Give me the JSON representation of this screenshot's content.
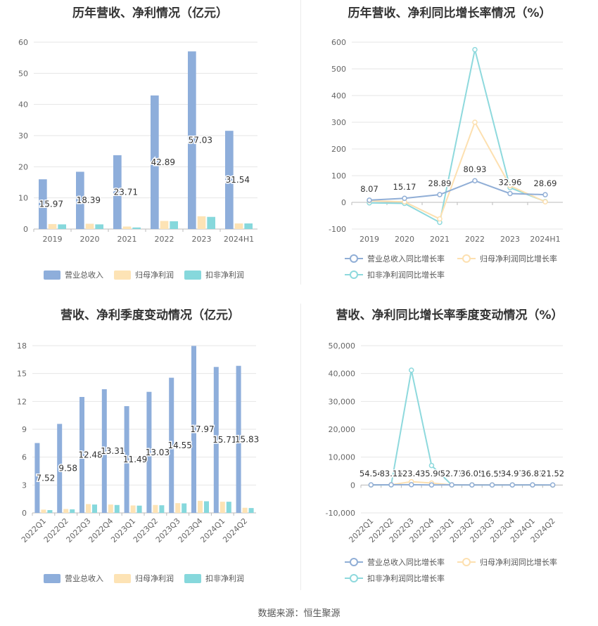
{
  "footer": {
    "source": "数据来源：恒生聚源"
  },
  "colors": {
    "revenue": "#8eaedb",
    "net_profit": "#fde3b5",
    "deducted_profit": "#86d8dc",
    "revenue_line": "#90aed6",
    "net_line": "#fde0b0",
    "deducted_line": "#8ed9dd"
  },
  "chart_data": [
    {
      "id": "annual_amount",
      "type": "bar",
      "title": "历年营收、净利情况（亿元）",
      "categories": [
        "2019",
        "2020",
        "2021",
        "2022",
        "2023",
        "2024H1"
      ],
      "ylim": [
        0,
        60
      ],
      "yticks": [
        0,
        10,
        20,
        30,
        40,
        50,
        60
      ],
      "series": [
        {
          "name": "营业总收入",
          "values": [
            15.97,
            18.39,
            23.71,
            42.89,
            57.03,
            31.54
          ],
          "data_labels": [
            "15.97",
            "18.39",
            "23.71",
            "42.89",
            "57.03",
            "31.54"
          ]
        },
        {
          "name": "归母净利润",
          "values": [
            1.6,
            1.7,
            0.8,
            2.6,
            4.1,
            1.8
          ]
        },
        {
          "name": "扣非净利润",
          "values": [
            1.5,
            1.5,
            0.5,
            2.5,
            3.9,
            1.8
          ]
        }
      ],
      "legend": "bottom"
    },
    {
      "id": "annual_growth",
      "type": "line",
      "title": "历年营收、净利同比增长率情况（%）",
      "categories": [
        "2019",
        "2020",
        "2021",
        "2022",
        "2023",
        "2024H1"
      ],
      "ylim": [
        -100,
        600
      ],
      "yticks": [
        -100,
        0,
        100,
        200,
        300,
        400,
        500,
        600
      ],
      "series": [
        {
          "name": "营业总收入同比增长率",
          "values": [
            8.07,
            15.17,
            28.89,
            80.93,
            32.96,
            28.69
          ],
          "data_labels": [
            "8.07",
            "15.17",
            "28.89",
            "80.93",
            "32.96",
            "28.69"
          ]
        },
        {
          "name": "归母净利润同比增长率",
          "values": [
            6,
            2,
            -62,
            300,
            62,
            2
          ]
        },
        {
          "name": "扣非净利润同比增长率",
          "values": [
            -2,
            -4,
            -75,
            572,
            55,
            3
          ]
        }
      ],
      "legend": "bottom"
    },
    {
      "id": "quarterly_amount",
      "type": "bar",
      "title": "营收、净利季度变动情况（亿元）",
      "categories": [
        "2022Q1",
        "2022Q2",
        "2022Q3",
        "2022Q4",
        "2023Q1",
        "2023Q2",
        "2023Q3",
        "2023Q4",
        "2024Q1",
        "2024Q2"
      ],
      "ylim": [
        0,
        18
      ],
      "yticks": [
        0,
        3,
        6,
        9,
        12,
        15,
        18
      ],
      "series": [
        {
          "name": "营业总收入",
          "values": [
            7.52,
            9.58,
            12.48,
            13.31,
            11.49,
            13.03,
            14.55,
            17.97,
            15.71,
            15.83
          ],
          "data_labels": [
            "7.52",
            "9.58",
            "12.48",
            "13.31",
            "11.49",
            "13.03",
            "14.55",
            "17.97",
            "15.71",
            "15.83"
          ]
        },
        {
          "name": "归母净利润",
          "values": [
            0.35,
            0.42,
            0.95,
            0.9,
            0.8,
            0.85,
            1.05,
            1.3,
            1.2,
            0.55
          ]
        },
        {
          "name": "扣非净利润",
          "values": [
            0.3,
            0.38,
            0.9,
            0.85,
            0.78,
            0.82,
            1.02,
            1.25,
            1.2,
            0.52
          ]
        }
      ],
      "legend": "bottom"
    },
    {
      "id": "quarterly_growth",
      "type": "line",
      "title": "营收、净利同比增长率季度变动情况（%）",
      "categories": [
        "2022Q1",
        "2022Q2",
        "2022Q3",
        "2022Q4",
        "2023Q1",
        "2023Q2",
        "2023Q3",
        "2023Q4",
        "2024Q1",
        "2024Q2"
      ],
      "ylim": [
        -10000,
        50000
      ],
      "yticks": [
        -10000,
        0,
        10000,
        20000,
        30000,
        40000,
        50000
      ],
      "ytick_labels": [
        "-10,000",
        "0",
        "10,000",
        "20,000",
        "30,000",
        "40,000",
        "50,000"
      ],
      "series": [
        {
          "name": "营业总收入同比增长率",
          "values": [
            54.54,
            83.16,
            123.42,
            35.9,
            52.71,
            36.05,
            16.55,
            34.97,
            36.81,
            21.52
          ],
          "data_labels": [
            "54.54",
            "83.16",
            "123.42",
            "35.90",
            "52.71",
            "36.05",
            "16.55",
            "34.97",
            "36.81",
            "21.52"
          ]
        },
        {
          "name": "归母净利润同比增长率",
          "values": [
            30,
            100,
            1200,
            700,
            40,
            60,
            40,
            50,
            30,
            -30
          ]
        },
        {
          "name": "扣非净利润同比增长率",
          "values": [
            20,
            50,
            41200,
            7000,
            30,
            50,
            30,
            40,
            20,
            -40
          ]
        }
      ],
      "legend": "bottom"
    }
  ]
}
